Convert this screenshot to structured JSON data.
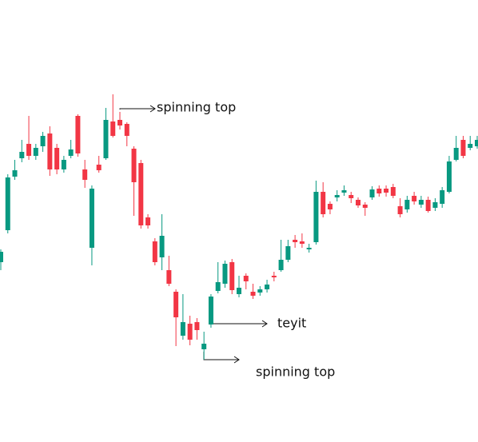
{
  "chart_data": {
    "type": "candlestick",
    "up_color": "#089981",
    "down_color": "#f23645",
    "ylim": [
      0,
      553
    ],
    "open": [
      225,
      265,
      332,
      355,
      373,
      358,
      370,
      386,
      368,
      341,
      358,
      408,
      341,
      243,
      347,
      355,
      401,
      403,
      398,
      367,
      349,
      281,
      251,
      231,
      215,
      188,
      133,
      148,
      150,
      116,
      147,
      189,
      198,
      225,
      185,
      208,
      188,
      187,
      191,
      208,
      215,
      228,
      253,
      251,
      241,
      250,
      313,
      298,
      306,
      312,
      309,
      303,
      297,
      306,
      317,
      317,
      319,
      295,
      291,
      308,
      297,
      303,
      293,
      298,
      313,
      353,
      378,
      368,
      370
    ],
    "high": [
      241,
      335,
      353,
      378,
      408,
      373,
      388,
      395,
      373,
      358,
      378,
      410,
      353,
      321,
      358,
      418,
      435,
      413,
      400,
      370,
      353,
      285,
      255,
      285,
      233,
      191,
      185,
      158,
      155,
      138,
      185,
      225,
      227,
      229,
      208,
      211,
      198,
      195,
      203,
      213,
      253,
      253,
      259,
      261,
      248,
      327,
      325,
      301,
      315,
      321,
      313,
      306,
      300,
      320,
      321,
      321,
      323,
      305,
      308,
      313,
      308,
      307,
      305,
      319,
      358,
      383,
      383,
      383,
      383
    ],
    "low": [
      215,
      261,
      328,
      350,
      353,
      353,
      363,
      333,
      335,
      337,
      355,
      357,
      318,
      221,
      337,
      353,
      381,
      391,
      370,
      283,
      267,
      267,
      221,
      215,
      195,
      120,
      128,
      121,
      128,
      103,
      143,
      186,
      193,
      185,
      181,
      191,
      179,
      183,
      187,
      201,
      213,
      225,
      243,
      243,
      237,
      247,
      281,
      285,
      301,
      308,
      299,
      293,
      283,
      303,
      307,
      307,
      305,
      281,
      287,
      297,
      293,
      287,
      289,
      293,
      311,
      351,
      355,
      365,
      367
    ],
    "close": [
      238,
      331,
      340,
      363,
      358,
      368,
      383,
      341,
      341,
      353,
      366,
      361,
      328,
      317,
      340,
      403,
      383,
      396,
      383,
      325,
      271,
      271,
      225,
      258,
      198,
      156,
      150,
      128,
      140,
      123,
      182,
      200,
      223,
      190,
      193,
      201,
      183,
      191,
      197,
      206,
      228,
      245,
      250,
      248,
      243,
      313,
      285,
      291,
      309,
      315,
      305,
      296,
      293,
      316,
      311,
      312,
      308,
      285,
      303,
      301,
      303,
      289,
      300,
      315,
      351,
      368,
      358,
      373,
      378
    ],
    "annotations": [
      "spinning top",
      "teyit",
      "spinning top"
    ]
  }
}
